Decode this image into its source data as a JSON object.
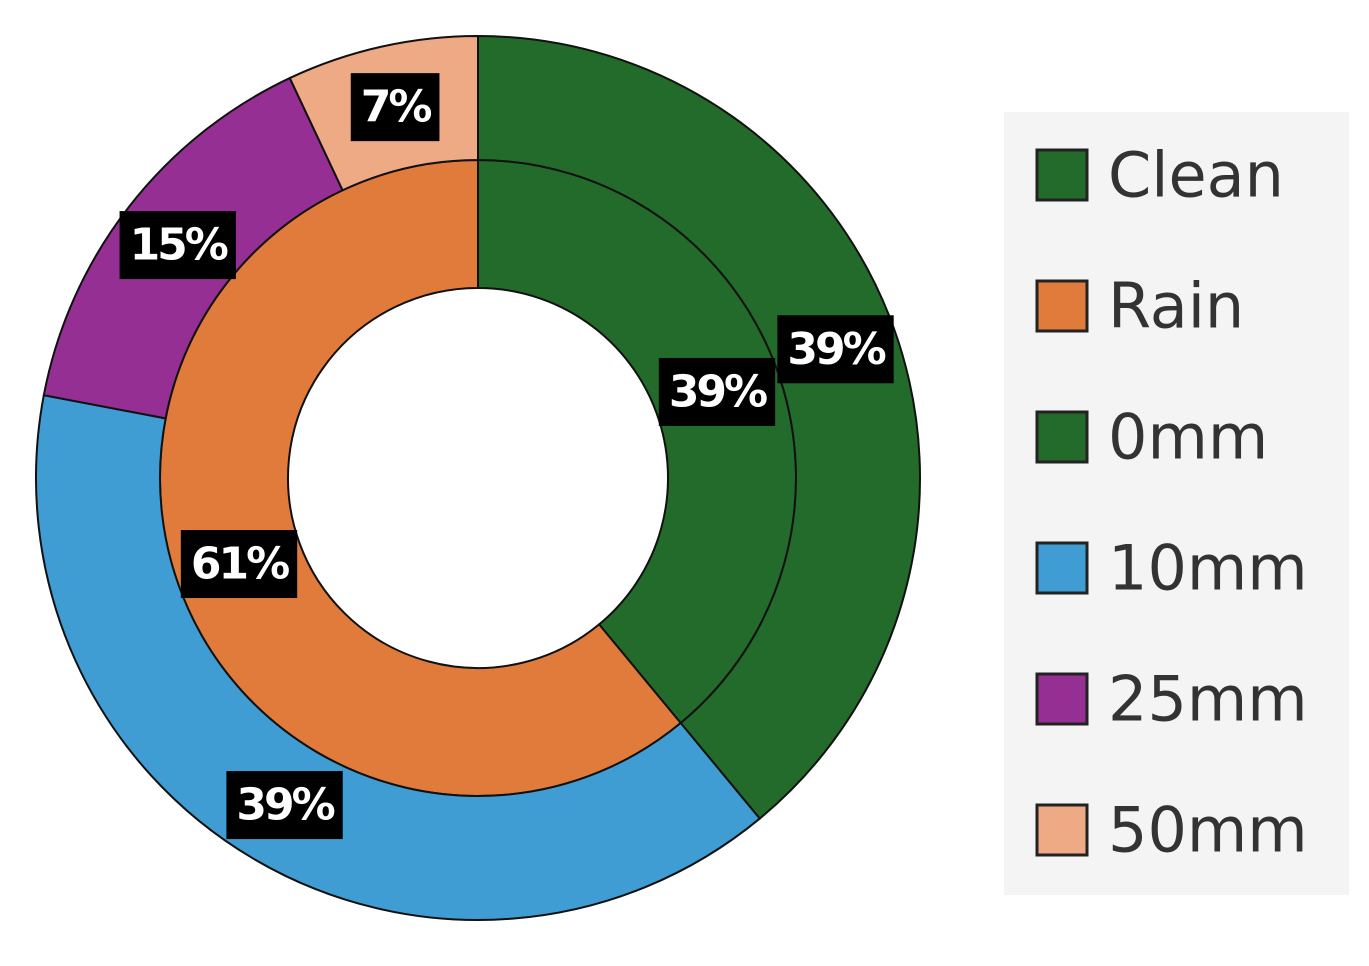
{
  "chart_data": {
    "type": "donut",
    "rings": [
      {
        "categories": [
          "Clean",
          "Rain"
        ],
        "colors": [
          "#236b2a",
          "#e07b3c"
        ],
        "values": [
          39,
          61
        ],
        "value_labels": [
          "39%",
          "61%"
        ]
      },
      {
        "categories": [
          "0mm",
          "10mm",
          "25mm",
          "50mm"
        ],
        "colors": [
          "#236b2a",
          "#3f9dd4",
          "#962f94",
          "#eeaa85"
        ],
        "values": [
          39,
          39,
          15,
          7
        ],
        "value_labels": [
          "39%",
          "39%",
          "15%",
          "7%"
        ]
      }
    ]
  }
}
